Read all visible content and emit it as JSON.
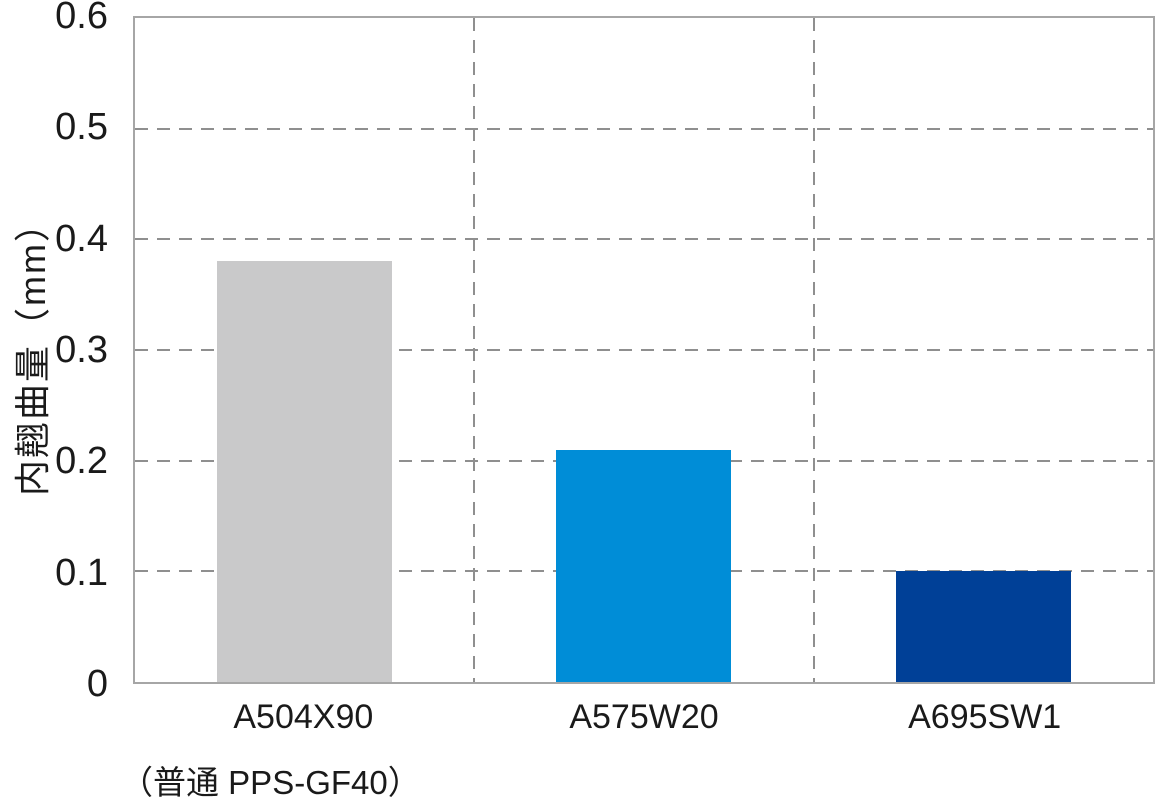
{
  "chart_data": {
    "type": "bar",
    "categories": [
      "A504X90",
      "A575W20",
      "A695SW1"
    ],
    "values": [
      0.38,
      0.21,
      0.1
    ],
    "bar_colors": [
      "#c9c9ca",
      "#008dd7",
      "#004097"
    ],
    "title": "",
    "xlabel": "",
    "ylabel": "内翹曲量（mm）",
    "ylim": [
      0,
      0.6
    ],
    "yticks": [
      0,
      0.1,
      0.2,
      0.3,
      0.4,
      0.5,
      0.6
    ],
    "ytick_labels": [
      "0",
      "0.1",
      "0.2",
      "0.3",
      "0.4",
      "0.5",
      "0.6"
    ],
    "grid": "dashed horizontal lines at each y tick and dashed vertical category dividers",
    "legend": "none",
    "footnote": "（普通 PPS-GF40）",
    "plot_border_color": "#a6a6a6",
    "gridline_color": "#8f8f8f",
    "text_color": "#1a1a1a"
  }
}
